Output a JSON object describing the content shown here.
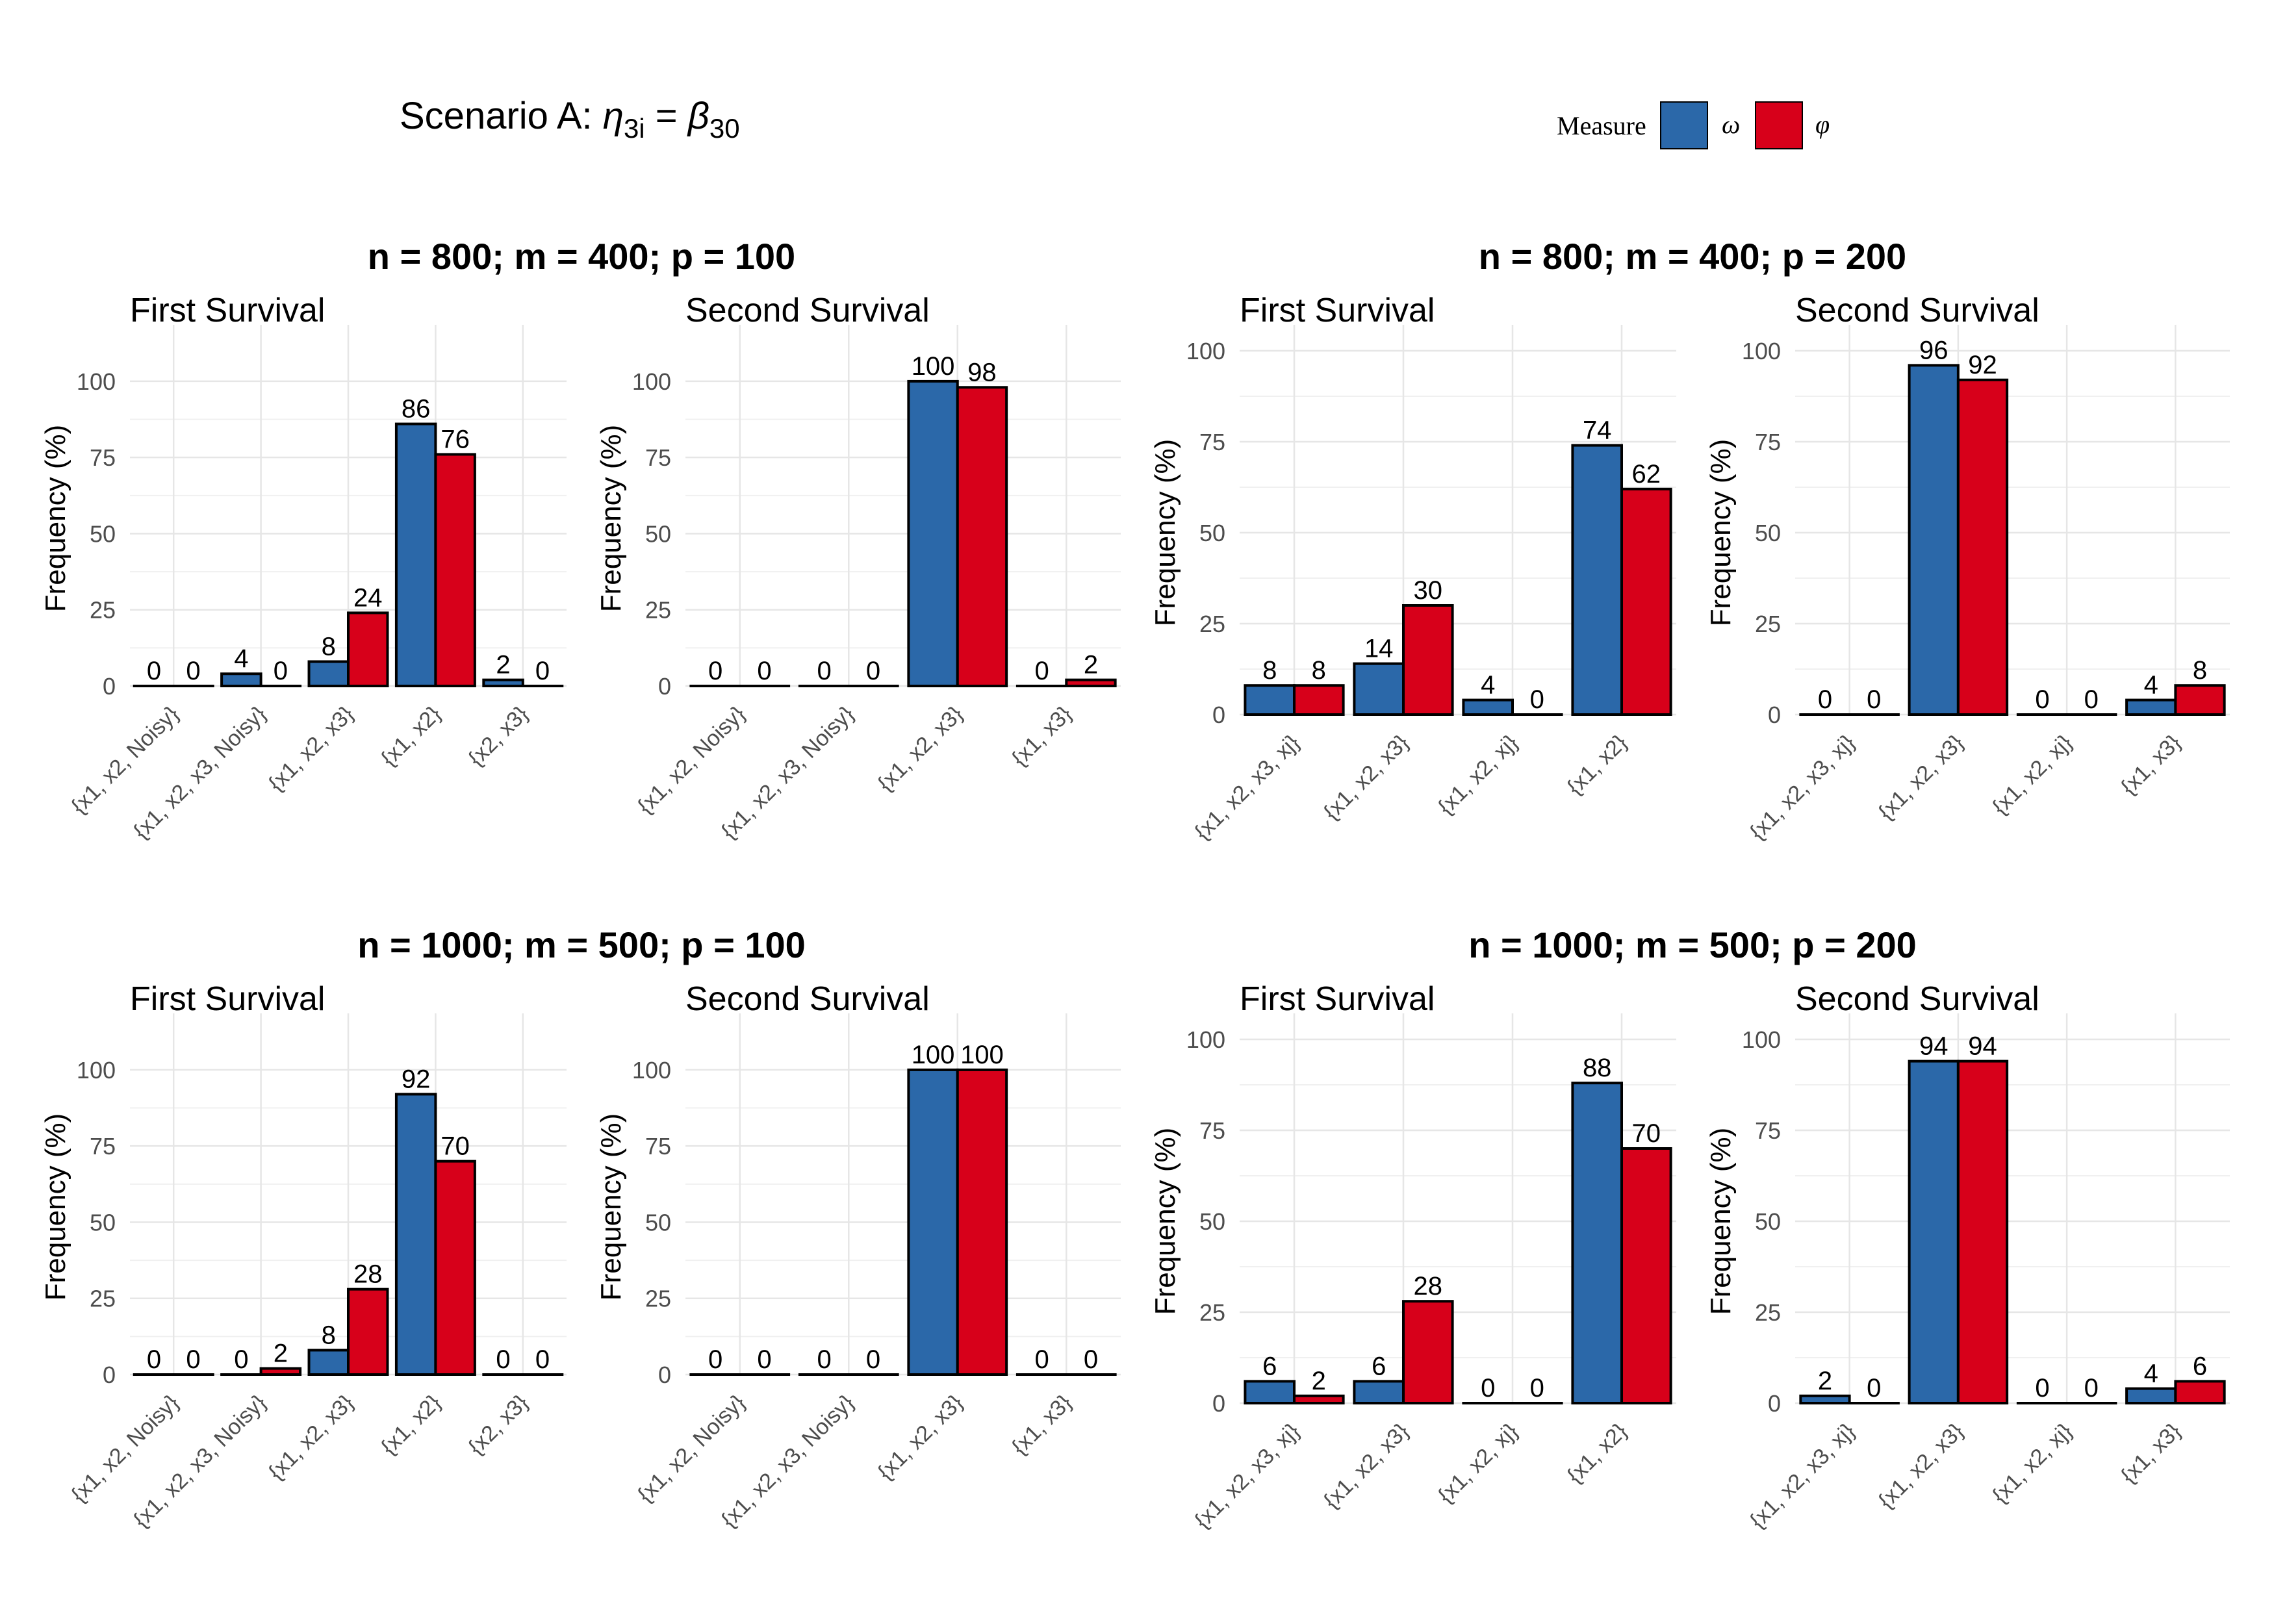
{
  "figure": {
    "title_prefix": "Scenario A: ",
    "title_eta": "η",
    "title_eta_sub": "3i",
    "title_equals": " = ",
    "title_beta": "β",
    "title_beta_sub": "30"
  },
  "legend": {
    "title": "Measure",
    "items": [
      {
        "label": "ω",
        "color": "#2B68A9"
      },
      {
        "label": "φ",
        "color": "#D7001A"
      }
    ]
  },
  "colors": {
    "omega": "#2B68A9",
    "phi": "#D7001A",
    "grid": "#E6E6E6",
    "axis_text": "#4D4D4D"
  },
  "chart_data": [
    {
      "group_title": "n = 800; m = 400; p = 100",
      "panels": [
        {
          "type": "bar",
          "title": "First Survival",
          "ylabel": "Frequency (%)",
          "ylim": [
            0,
            110
          ],
          "yticks": [
            0,
            25,
            50,
            75,
            100
          ],
          "categories": [
            "{x1, x2, Noisy}",
            "{x1, x2, x3, Noisy}",
            "{x1, x2, x3}",
            "{x1, x2}",
            "{x2, x3}"
          ],
          "series": [
            {
              "name": "ω",
              "values": [
                0,
                4,
                8,
                86,
                2
              ]
            },
            {
              "name": "φ",
              "values": [
                0,
                0,
                24,
                76,
                0
              ]
            }
          ]
        },
        {
          "type": "bar",
          "title": "Second Survival",
          "ylabel": "Frequency (%)",
          "ylim": [
            0,
            110
          ],
          "yticks": [
            0,
            25,
            50,
            75,
            100
          ],
          "categories": [
            "{x1, x2, Noisy}",
            "{x1, x2, x3, Noisy}",
            "{x1, x2, x3}",
            "{x1, x3}"
          ],
          "series": [
            {
              "name": "ω",
              "values": [
                0,
                0,
                100,
                0
              ]
            },
            {
              "name": "φ",
              "values": [
                0,
                0,
                98,
                2
              ]
            }
          ]
        }
      ]
    },
    {
      "group_title": "n = 800; m = 400; p = 200",
      "panels": [
        {
          "type": "bar",
          "title": "First Survival",
          "ylabel": "Frequency (%)",
          "ylim": [
            0,
            100
          ],
          "yticks": [
            0,
            25,
            50,
            75,
            100
          ],
          "categories": [
            "{x1, x2, x3, xj}",
            "{x1, x2, x3}",
            "{x1, x2, xj}",
            "{x1, x2}"
          ],
          "series": [
            {
              "name": "ω",
              "values": [
                8,
                14,
                4,
                74
              ]
            },
            {
              "name": "φ",
              "values": [
                8,
                30,
                0,
                62
              ]
            }
          ]
        },
        {
          "type": "bar",
          "title": "Second Survival",
          "ylabel": "Frequency (%)",
          "ylim": [
            0,
            100
          ],
          "yticks": [
            0,
            25,
            50,
            75,
            100
          ],
          "categories": [
            "{x1, x2, x3, xj}",
            "{x1, x2, x3}",
            "{x1, x2, xj}",
            "{x1, x3}"
          ],
          "series": [
            {
              "name": "ω",
              "values": [
                0,
                96,
                0,
                4
              ]
            },
            {
              "name": "φ",
              "values": [
                0,
                92,
                0,
                8
              ]
            }
          ]
        }
      ]
    },
    {
      "group_title": "n = 1000; m = 500; p = 100",
      "panels": [
        {
          "type": "bar",
          "title": "First Survival",
          "ylabel": "Frequency (%)",
          "ylim": [
            0,
            110
          ],
          "yticks": [
            0,
            25,
            50,
            75,
            100
          ],
          "categories": [
            "{x1, x2, Noisy}",
            "{x1, x2, x3, Noisy}",
            "{x1, x2, x3}",
            "{x1, x2}",
            "{x2, x3}"
          ],
          "series": [
            {
              "name": "ω",
              "values": [
                0,
                0,
                8,
                92,
                0
              ]
            },
            {
              "name": "φ",
              "values": [
                0,
                2,
                28,
                70,
                0
              ]
            }
          ]
        },
        {
          "type": "bar",
          "title": "Second Survival",
          "ylabel": "Frequency (%)",
          "ylim": [
            0,
            110
          ],
          "yticks": [
            0,
            25,
            50,
            75,
            100
          ],
          "categories": [
            "{x1, x2, Noisy}",
            "{x1, x2, x3, Noisy}",
            "{x1, x2, x3}",
            "{x1, x3}"
          ],
          "series": [
            {
              "name": "ω",
              "values": [
                0,
                0,
                100,
                0
              ]
            },
            {
              "name": "φ",
              "values": [
                0,
                0,
                100,
                0
              ]
            }
          ]
        }
      ]
    },
    {
      "group_title": "n = 1000; m = 500; p = 200",
      "panels": [
        {
          "type": "bar",
          "title": "First Survival",
          "ylabel": "Frequency (%)",
          "ylim": [
            0,
            100
          ],
          "yticks": [
            0,
            25,
            50,
            75,
            100
          ],
          "categories": [
            "{x1, x2, x3, xj}",
            "{x1, x2, x3}",
            "{x1, x2, xj}",
            "{x1, x2}"
          ],
          "series": [
            {
              "name": "ω",
              "values": [
                6,
                6,
                0,
                88
              ]
            },
            {
              "name": "φ",
              "values": [
                2,
                28,
                0,
                70
              ]
            }
          ]
        },
        {
          "type": "bar",
          "title": "Second Survival",
          "ylabel": "Frequency (%)",
          "ylim": [
            0,
            100
          ],
          "yticks": [
            0,
            25,
            50,
            75,
            100
          ],
          "categories": [
            "{x1, x2, x3, xj}",
            "{x1, x2, x3}",
            "{x1, x2, xj}",
            "{x1, x3}"
          ],
          "series": [
            {
              "name": "ω",
              "values": [
                2,
                94,
                0,
                4
              ]
            },
            {
              "name": "φ",
              "values": [
                0,
                94,
                0,
                6
              ]
            }
          ]
        }
      ]
    }
  ]
}
